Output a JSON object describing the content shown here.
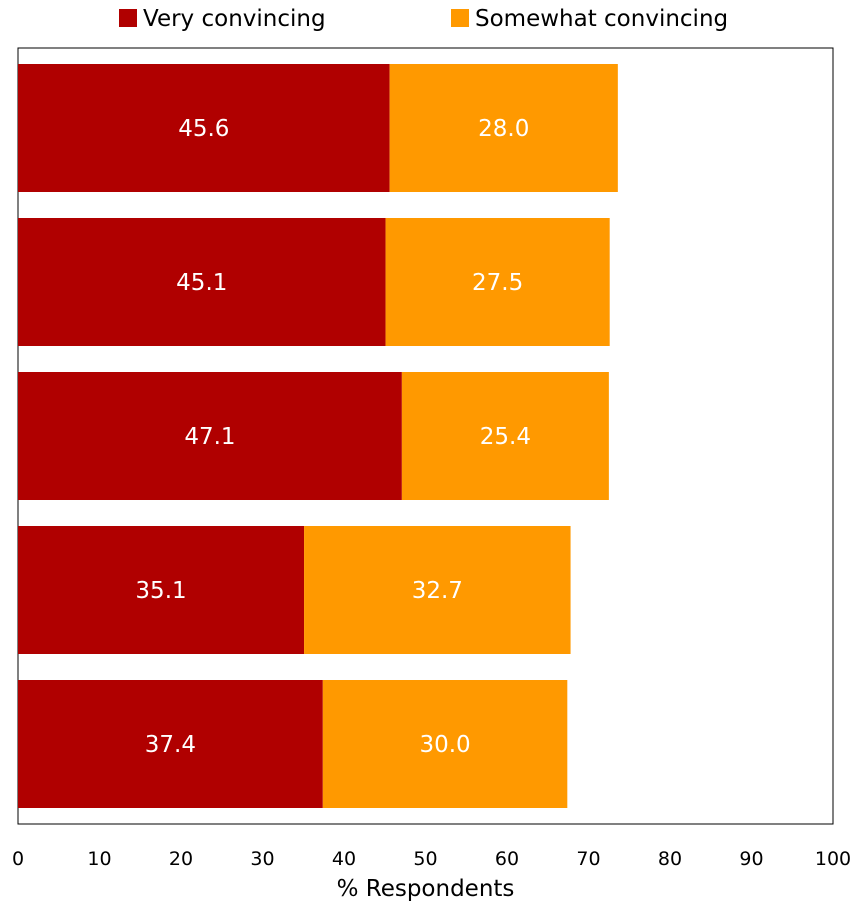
{
  "chart_data": {
    "type": "bar",
    "orientation": "horizontal",
    "stacked": true,
    "title": "",
    "xlabel": "% Respondents",
    "ylabel": "",
    "xlim": [
      0,
      100
    ],
    "xticks": [
      0,
      10,
      20,
      30,
      40,
      50,
      60,
      70,
      80,
      90,
      100
    ],
    "categories": [
      "",
      "",
      "",
      "",
      ""
    ],
    "series": [
      {
        "name": "Very convincing",
        "color": "#b00000",
        "values": [
          45.6,
          45.1,
          47.1,
          35.1,
          37.4
        ]
      },
      {
        "name": "Somewhat convincing",
        "color": "#ff9900",
        "values": [
          28.0,
          27.5,
          25.4,
          32.7,
          30.0
        ]
      }
    ],
    "data_labels": [
      [
        "45.6",
        "45.1",
        "47.1",
        "35.1",
        "37.4"
      ],
      [
        "28.0",
        "27.5",
        "25.4",
        "32.7",
        "30.0"
      ]
    ],
    "legend_position": "top",
    "grid": false
  }
}
